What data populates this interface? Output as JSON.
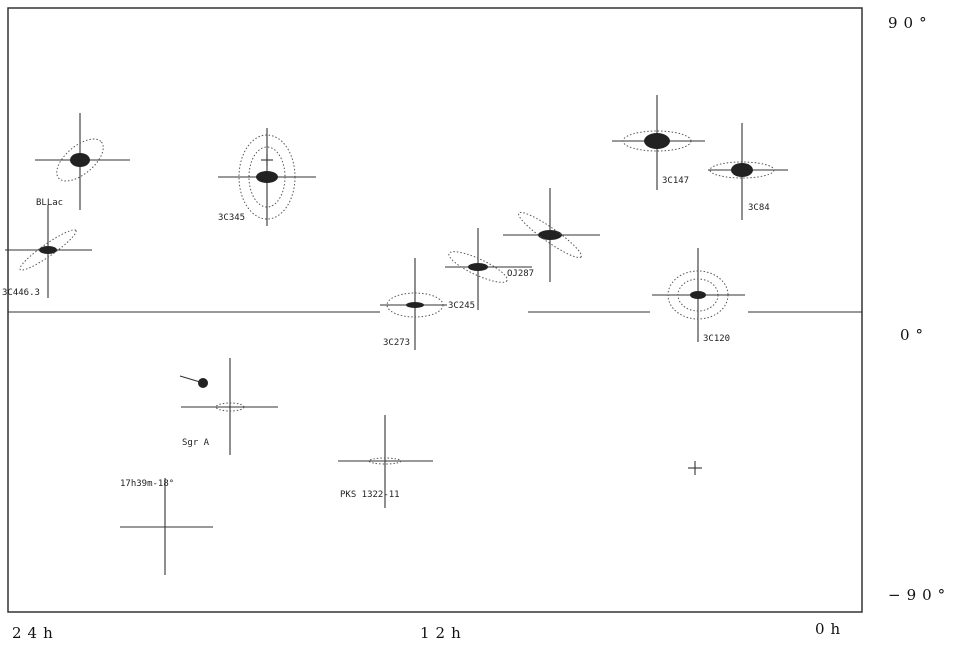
{
  "axes": {
    "dec_top": "90°",
    "dec_mid": "0°",
    "dec_bottom": "−90°",
    "ra_left": "24h",
    "ra_mid": "12h",
    "ra_right": "0h"
  },
  "sources": [
    "BLLac",
    "3C345",
    "3C446.3",
    "3C273",
    "3C245",
    "OJ287",
    "3C147",
    "3C84",
    "3C120",
    "Sgr A",
    "PKS 1322-11",
    "17h39m-18°"
  ]
}
